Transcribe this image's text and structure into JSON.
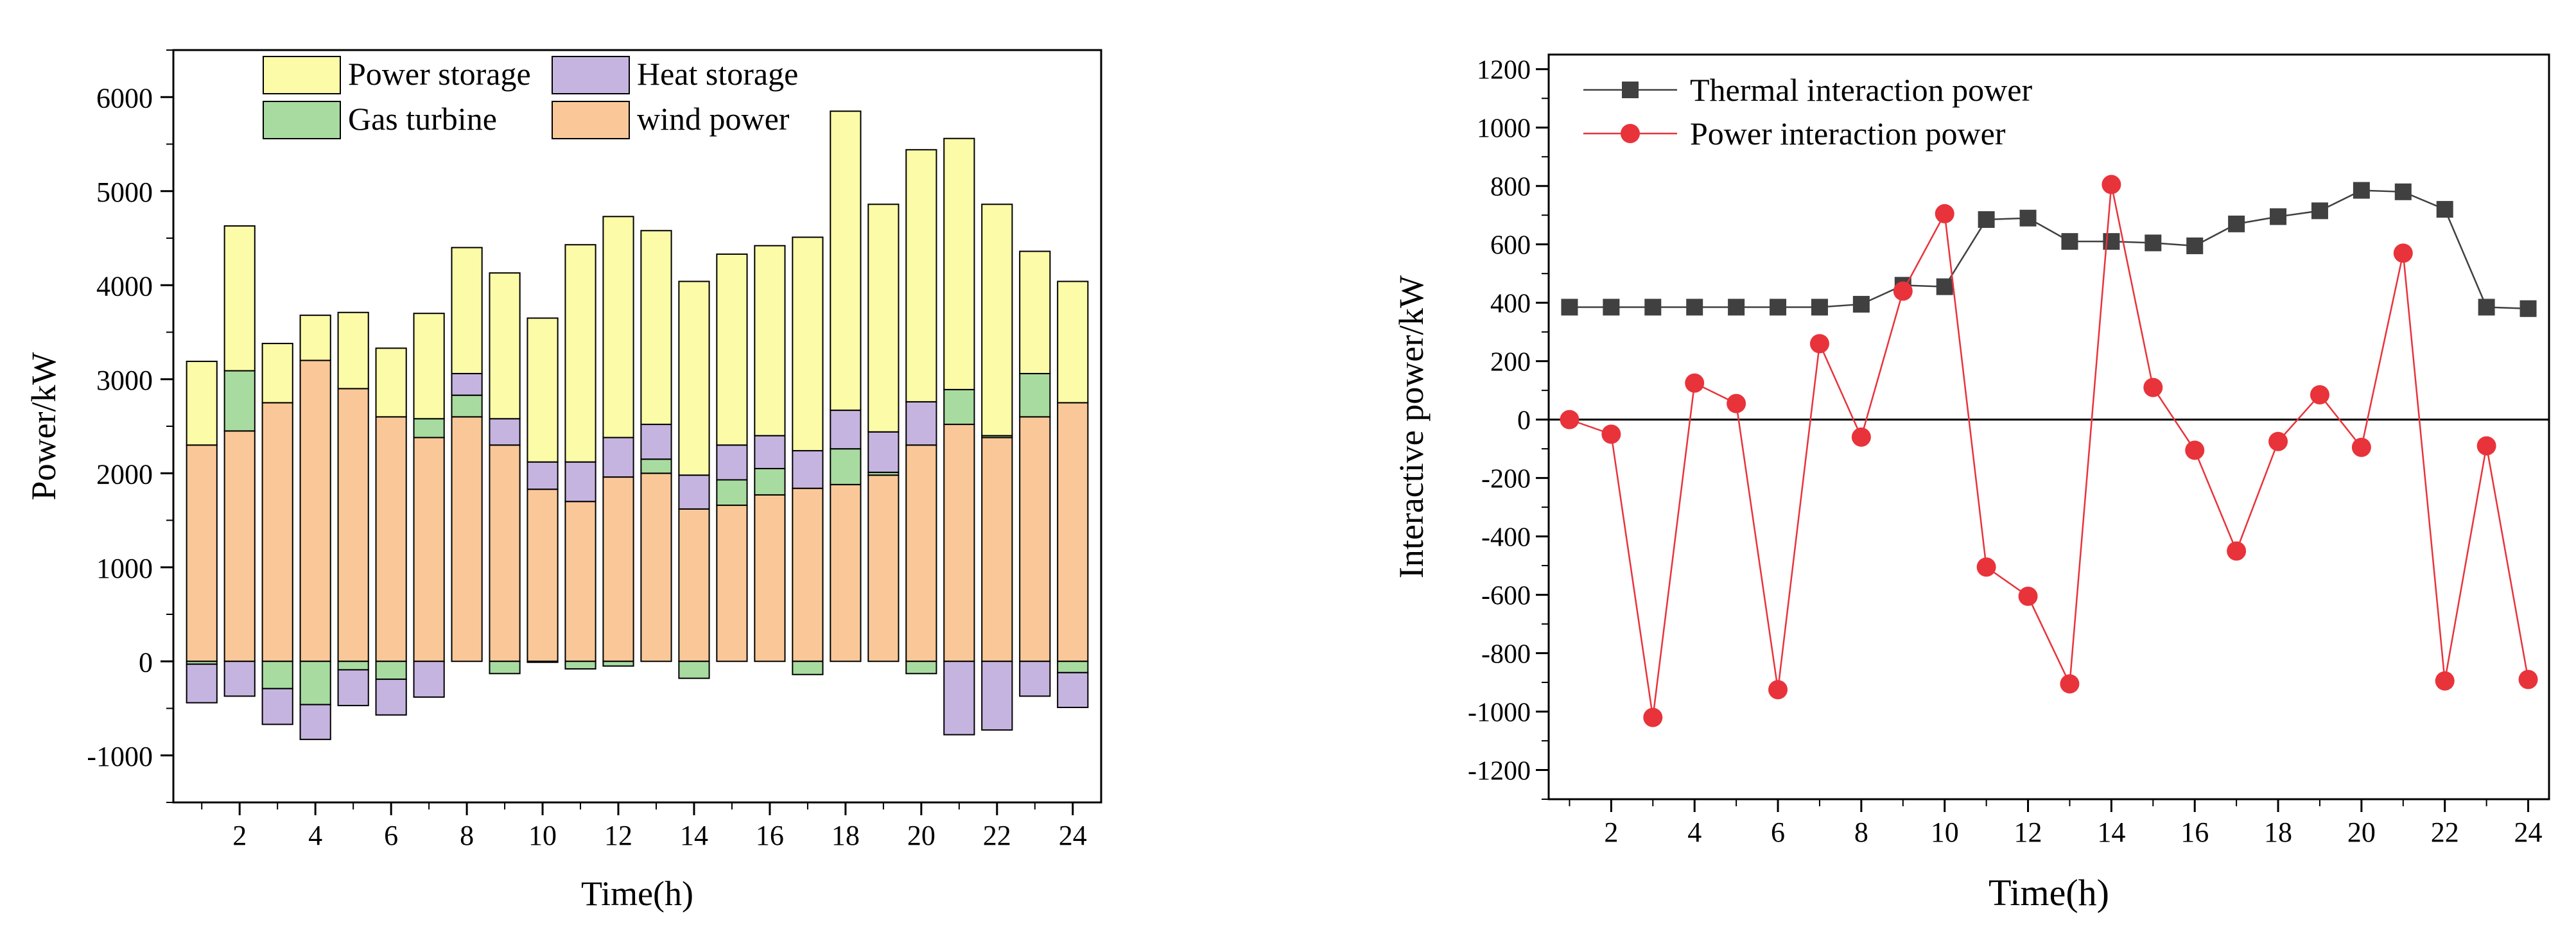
{
  "chart_data": [
    {
      "type": "bar",
      "stacked": true,
      "xlabel": "Time(h)",
      "ylabel": "Power/kW",
      "ylim": [
        -1500,
        6500
      ],
      "yticks": [
        -1000,
        0,
        1000,
        2000,
        3000,
        4000,
        5000,
        6000
      ],
      "xtick_labels": [
        "2",
        "4",
        "6",
        "8",
        "10",
        "12",
        "14",
        "16",
        "18",
        "20",
        "22",
        "24"
      ],
      "categories": [
        1,
        2,
        3,
        4,
        5,
        6,
        7,
        8,
        9,
        10,
        11,
        12,
        13,
        14,
        15,
        16,
        17,
        18,
        19,
        20,
        21,
        22,
        23,
        24
      ],
      "legend_position": "top-center",
      "grid": false,
      "series": [
        {
          "name": "wind power",
          "color": "#FAC898",
          "values": [
            2300,
            2450,
            2750,
            3200,
            2900,
            2600,
            2380,
            2600,
            2300,
            1830,
            1700,
            1960,
            2000,
            1620,
            1660,
            1770,
            1840,
            1880,
            1980,
            2300,
            2520,
            2380,
            2600,
            2750
          ]
        },
        {
          "name": "Gas turbine",
          "color": "#A8DBA0",
          "values": [
            0,
            640,
            0,
            0,
            0,
            0,
            200,
            230,
            0,
            0,
            0,
            0,
            150,
            0,
            270,
            280,
            0,
            380,
            30,
            0,
            370,
            20,
            460,
            0
          ]
        },
        {
          "name": "Heat storage",
          "color": "#C6B4E0",
          "values": [
            0,
            0,
            0,
            0,
            0,
            0,
            0,
            230,
            280,
            290,
            420,
            420,
            370,
            360,
            370,
            350,
            400,
            410,
            430,
            460,
            0,
            0,
            0,
            0
          ]
        },
        {
          "name": "Power storage",
          "color": "#FBFBA8",
          "values": [
            890,
            1540,
            630,
            480,
            810,
            730,
            1120,
            1340,
            1550,
            1530,
            2310,
            2350,
            2060,
            2060,
            2030,
            2020,
            2270,
            3180,
            2420,
            2680,
            2670,
            2460,
            1300,
            1290
          ]
        },
        {
          "name": "Gas turbine",
          "color": "#A8DBA0",
          "values": [
            -30,
            0,
            -290,
            -460,
            -90,
            -190,
            0,
            0,
            -130,
            -10,
            -80,
            -50,
            0,
            -180,
            0,
            0,
            -140,
            0,
            0,
            -130,
            0,
            0,
            0,
            -120
          ]
        },
        {
          "name": "Heat storage",
          "color": "#C6B4E0",
          "values": [
            -410,
            -370,
            -380,
            -370,
            -380,
            -380,
            -380,
            0,
            0,
            0,
            0,
            0,
            0,
            0,
            0,
            0,
            0,
            0,
            0,
            0,
            -780,
            -730,
            -370,
            -370
          ]
        }
      ]
    },
    {
      "type": "line",
      "xlabel": "Time(h)",
      "ylabel": "Interactive power/kW",
      "ylim": [
        -1300,
        1250
      ],
      "xlim": [
        0.5,
        24.5
      ],
      "yticks": [
        -1200,
        -1000,
        -800,
        -600,
        -400,
        -200,
        0,
        200,
        400,
        600,
        800,
        1000,
        1200
      ],
      "xtick_labels": [
        "2",
        "4",
        "6",
        "8",
        "10",
        "12",
        "14",
        "16",
        "18",
        "20",
        "22",
        "24"
      ],
      "x": [
        1,
        2,
        3,
        4,
        5,
        6,
        7,
        8,
        9,
        10,
        11,
        12,
        13,
        14,
        15,
        16,
        17,
        18,
        19,
        20,
        21,
        22,
        23,
        24
      ],
      "legend_position": "top-left",
      "zero_line": true,
      "grid": false,
      "series": [
        {
          "name": "Thermal interaction power",
          "color": "#404040",
          "marker": "square",
          "values": [
            385,
            385,
            385,
            385,
            385,
            385,
            385,
            395,
            460,
            455,
            685,
            690,
            610,
            610,
            605,
            595,
            670,
            695,
            715,
            785,
            780,
            720,
            385,
            380
          ]
        },
        {
          "name": "Power interaction power",
          "color": "#E8333B",
          "marker": "circle",
          "values": [
            0,
            -50,
            -1020,
            125,
            55,
            -925,
            260,
            -60,
            440,
            705,
            -505,
            -605,
            -905,
            805,
            110,
            -105,
            -450,
            -75,
            85,
            -95,
            570,
            -895,
            -90,
            -890
          ]
        }
      ]
    }
  ]
}
